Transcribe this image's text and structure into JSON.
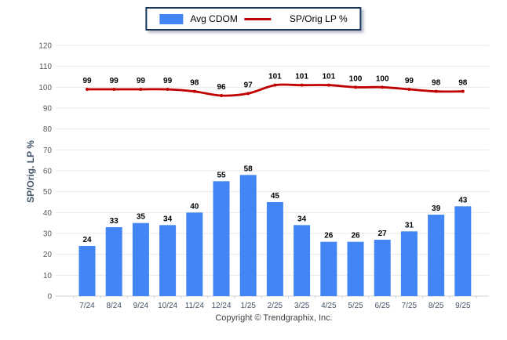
{
  "chart_data": {
    "type": "bar",
    "combo": "bar+line",
    "categories": [
      "7/24",
      "8/24",
      "9/24",
      "10/24",
      "11/24",
      "12/24",
      "1/25",
      "2/25",
      "3/25",
      "4/25",
      "5/25",
      "6/25",
      "7/25",
      "8/25",
      "9/25"
    ],
    "series": [
      {
        "name": "Avg CDOM",
        "render": "bar",
        "color": "#4285f4",
        "values": [
          24,
          33,
          35,
          34,
          40,
          55,
          58,
          45,
          34,
          26,
          26,
          27,
          31,
          39,
          43
        ]
      },
      {
        "name": "SP/Orig LP %",
        "render": "line",
        "color": "#c00000",
        "values": [
          99,
          99,
          99,
          99,
          98,
          96,
          97,
          101,
          101,
          101,
          100,
          100,
          99,
          98,
          98
        ]
      }
    ],
    "title": "",
    "xlabel": "",
    "ylabel": "SP/Orig. LP %",
    "ylim": [
      0,
      120
    ],
    "ytick_step": 10,
    "grid": true,
    "legend_position": "top-center",
    "data_labels": true
  },
  "legend": {
    "bar_label": "Avg CDOM",
    "line_label": "SP/Orig LP %"
  },
  "footer": {
    "copyright": "Copyright © Trendgraphix, Inc."
  },
  "colors": {
    "bar": "#4285f4",
    "line": "#c00000",
    "grid": "#e9e9e9",
    "baseline": "#cfcfcf",
    "y_tick_text": "#595959",
    "x_tick_text": "#44546a",
    "value_label_text": "#000000",
    "legend_border": "#17375e",
    "y_title_text": "#44546a",
    "copyright_text": "#404040"
  }
}
